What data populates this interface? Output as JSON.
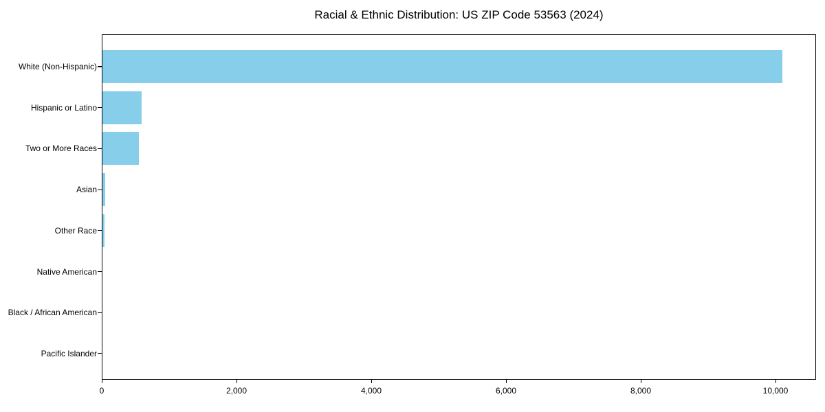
{
  "title": "Racial & Ethnic Distribution: US ZIP Code 53563 (2024)",
  "chart_data": {
    "type": "bar",
    "orientation": "horizontal",
    "title": "Racial & Ethnic Distribution: US ZIP Code 53563 (2024)",
    "categories": [
      "White (Non-Hispanic)",
      "Hispanic or Latino",
      "Two or More Races",
      "Asian",
      "Other Race",
      "Native American",
      "Black / African American",
      "Pacific Islander"
    ],
    "values": [
      10090,
      580,
      540,
      38,
      34,
      0,
      0,
      0
    ],
    "xlabel": "",
    "ylabel": "",
    "xlim": [
      0,
      10600
    ],
    "x_ticks": [
      0,
      2000,
      4000,
      6000,
      8000,
      10000
    ],
    "x_tick_labels": [
      "0",
      "2,000",
      "4,000",
      "6,000",
      "8,000",
      "10,000"
    ],
    "bar_color": "#87CEEB",
    "axis_color": "#000000",
    "grid": false,
    "legend": null
  }
}
